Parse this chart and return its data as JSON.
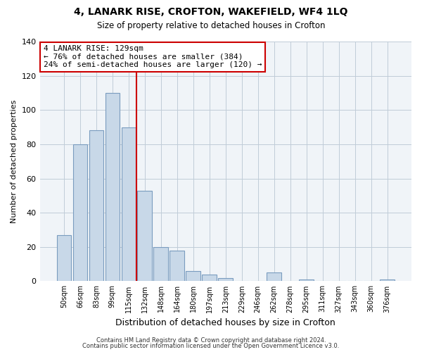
{
  "title": "4, LANARK RISE, CROFTON, WAKEFIELD, WF4 1LQ",
  "subtitle": "Size of property relative to detached houses in Crofton",
  "xlabel": "Distribution of detached houses by size in Crofton",
  "ylabel": "Number of detached properties",
  "bar_labels": [
    "50sqm",
    "66sqm",
    "83sqm",
    "99sqm",
    "115sqm",
    "132sqm",
    "148sqm",
    "164sqm",
    "180sqm",
    "197sqm",
    "213sqm",
    "229sqm",
    "246sqm",
    "262sqm",
    "278sqm",
    "295sqm",
    "311sqm",
    "327sqm",
    "343sqm",
    "360sqm",
    "376sqm"
  ],
  "bar_values": [
    27,
    80,
    88,
    110,
    90,
    53,
    20,
    18,
    6,
    4,
    2,
    0,
    0,
    5,
    0,
    1,
    0,
    0,
    0,
    0,
    1
  ],
  "bar_color": "#c8d8e8",
  "bar_edge_color": "#7a9cbf",
  "vline_index": 5,
  "vline_color": "#cc0000",
  "annotation_title": "4 LANARK RISE: 129sqm",
  "annotation_line1": "← 76% of detached houses are smaller (384)",
  "annotation_line2": "24% of semi-detached houses are larger (120) →",
  "annotation_box_color": "#ffffff",
  "annotation_border_color": "#cc0000",
  "ylim": [
    0,
    140
  ],
  "yticks": [
    0,
    20,
    40,
    60,
    80,
    100,
    120,
    140
  ],
  "footer1": "Contains HM Land Registry data © Crown copyright and database right 2024.",
  "footer2": "Contains public sector information licensed under the Open Government Licence v3.0.",
  "bg_color": "#ffffff",
  "plot_bg_color": "#f0f4f8"
}
